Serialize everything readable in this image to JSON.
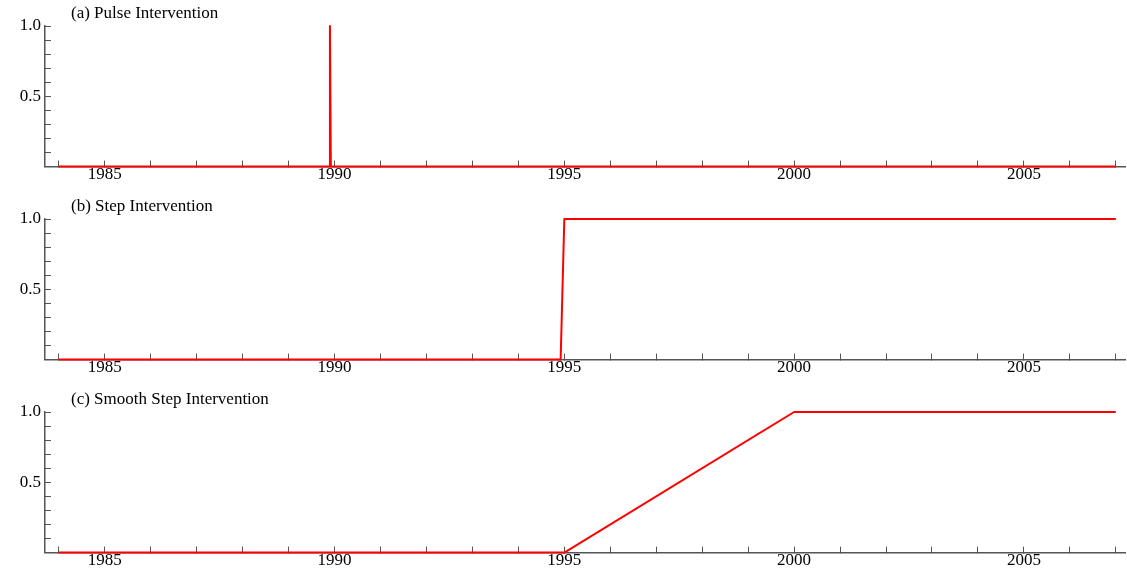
{
  "chart_data": [
    {
      "type": "line",
      "title": "(a) Pulse Intervention",
      "xlim": [
        1983.7,
        2007.2
      ],
      "ylim": [
        0,
        1
      ],
      "xticks": [
        {
          "value": 1984,
          "label": null
        },
        1985,
        {
          "value": 1986,
          "label": null
        },
        {
          "value": 1987,
          "label": null
        },
        {
          "value": 1988,
          "label": null
        },
        {
          "value": 1989,
          "label": null
        },
        1990,
        {
          "value": 1991,
          "label": null
        },
        {
          "value": 1992,
          "label": null
        },
        {
          "value": 1993,
          "label": null
        },
        {
          "value": 1994,
          "label": null
        },
        1995,
        {
          "value": 1996,
          "label": null
        },
        {
          "value": 1997,
          "label": null
        },
        {
          "value": 1998,
          "label": null
        },
        {
          "value": 1999,
          "label": null
        },
        2000,
        {
          "value": 2001,
          "label": null
        },
        {
          "value": 2002,
          "label": null
        },
        {
          "value": 2003,
          "label": null
        },
        {
          "value": 2004,
          "label": null
        },
        2005,
        {
          "value": 2006,
          "label": null
        },
        {
          "value": 2007,
          "label": null
        }
      ],
      "yticks": [
        {
          "value": 0.1,
          "label": null
        },
        {
          "value": 0.2,
          "label": null
        },
        {
          "value": 0.3,
          "label": null
        },
        {
          "value": 0.4,
          "label": null
        },
        {
          "value": 0.5,
          "label": "0.5"
        },
        {
          "value": 0.6,
          "label": null
        },
        {
          "value": 0.7,
          "label": null
        },
        {
          "value": 0.8,
          "label": null
        },
        {
          "value": 0.9,
          "label": null
        },
        {
          "value": 1,
          "label": "1.0"
        }
      ],
      "grid": false,
      "marker": "none",
      "legend": false,
      "series": [
        {
          "color": "#ff0000",
          "x": [
            1984,
            1989.88,
            1989.9,
            1989.92,
            2007
          ],
          "values": [
            0,
            0,
            1,
            0,
            0
          ]
        }
      ]
    },
    {
      "type": "line",
      "title": "(b) Step Intervention",
      "xlim": [
        1983.7,
        2007.2
      ],
      "ylim": [
        0,
        1
      ],
      "xticks": [
        {
          "value": 1984,
          "label": null
        },
        1985,
        {
          "value": 1986,
          "label": null
        },
        {
          "value": 1987,
          "label": null
        },
        {
          "value": 1988,
          "label": null
        },
        {
          "value": 1989,
          "label": null
        },
        1990,
        {
          "value": 1991,
          "label": null
        },
        {
          "value": 1992,
          "label": null
        },
        {
          "value": 1993,
          "label": null
        },
        {
          "value": 1994,
          "label": null
        },
        1995,
        {
          "value": 1996,
          "label": null
        },
        {
          "value": 1997,
          "label": null
        },
        {
          "value": 1998,
          "label": null
        },
        {
          "value": 1999,
          "label": null
        },
        2000,
        {
          "value": 2001,
          "label": null
        },
        {
          "value": 2002,
          "label": null
        },
        {
          "value": 2003,
          "label": null
        },
        {
          "value": 2004,
          "label": null
        },
        2005,
        {
          "value": 2006,
          "label": null
        },
        {
          "value": 2007,
          "label": null
        }
      ],
      "yticks": [
        {
          "value": 0.1,
          "label": null
        },
        {
          "value": 0.2,
          "label": null
        },
        {
          "value": 0.3,
          "label": null
        },
        {
          "value": 0.4,
          "label": null
        },
        {
          "value": 0.5,
          "label": "0.5"
        },
        {
          "value": 0.6,
          "label": null
        },
        {
          "value": 0.7,
          "label": null
        },
        {
          "value": 0.8,
          "label": null
        },
        {
          "value": 0.9,
          "label": null
        },
        {
          "value": 1,
          "label": "1.0"
        }
      ],
      "grid": false,
      "marker": "none",
      "legend": false,
      "series": [
        {
          "color": "#ff0000",
          "x": [
            1984,
            1994.92,
            1995,
            2007
          ],
          "values": [
            0,
            0,
            1,
            1
          ]
        }
      ]
    },
    {
      "type": "line",
      "title": "(c) Smooth Step Intervention",
      "xlim": [
        1983.7,
        2007.2
      ],
      "ylim": [
        0,
        1
      ],
      "xticks": [
        {
          "value": 1984,
          "label": null
        },
        1985,
        {
          "value": 1986,
          "label": null
        },
        {
          "value": 1987,
          "label": null
        },
        {
          "value": 1988,
          "label": null
        },
        {
          "value": 1989,
          "label": null
        },
        1990,
        {
          "value": 1991,
          "label": null
        },
        {
          "value": 1992,
          "label": null
        },
        {
          "value": 1993,
          "label": null
        },
        {
          "value": 1994,
          "label": null
        },
        1995,
        {
          "value": 1996,
          "label": null
        },
        {
          "value": 1997,
          "label": null
        },
        {
          "value": 1998,
          "label": null
        },
        {
          "value": 1999,
          "label": null
        },
        2000,
        {
          "value": 2001,
          "label": null
        },
        {
          "value": 2002,
          "label": null
        },
        {
          "value": 2003,
          "label": null
        },
        {
          "value": 2004,
          "label": null
        },
        2005,
        {
          "value": 2006,
          "label": null
        },
        {
          "value": 2007,
          "label": null
        }
      ],
      "yticks": [
        {
          "value": 0.1,
          "label": null
        },
        {
          "value": 0.2,
          "label": null
        },
        {
          "value": 0.3,
          "label": null
        },
        {
          "value": 0.4,
          "label": null
        },
        {
          "value": 0.5,
          "label": "0.5"
        },
        {
          "value": 0.6,
          "label": null
        },
        {
          "value": 0.7,
          "label": null
        },
        {
          "value": 0.8,
          "label": null
        },
        {
          "value": 0.9,
          "label": null
        },
        {
          "value": 1,
          "label": "1.0"
        }
      ],
      "grid": false,
      "marker": "none",
      "legend": false,
      "series": [
        {
          "color": "#ff0000",
          "x": [
            1984,
            1995,
            2000,
            2007
          ],
          "values": [
            0,
            0,
            1,
            1
          ]
        }
      ]
    }
  ]
}
